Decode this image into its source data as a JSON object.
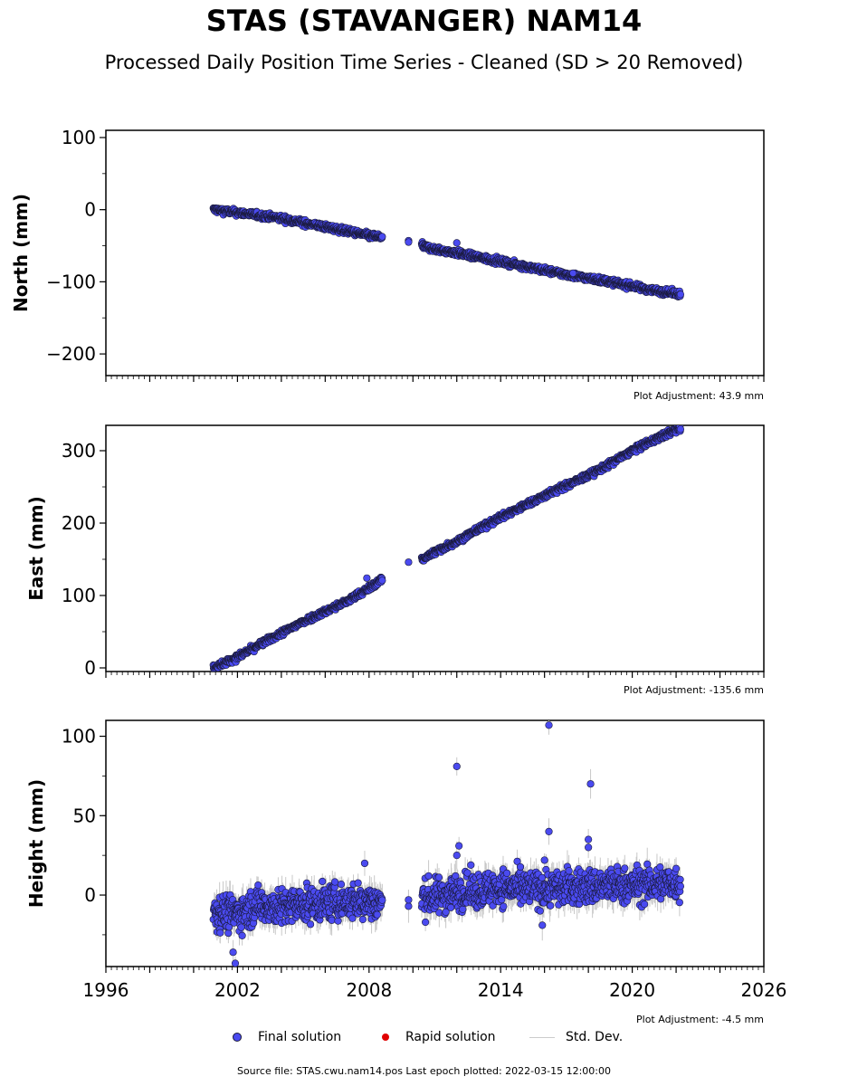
{
  "title": "STAS (STAVANGER) NAM14",
  "subtitle": "Processed Daily Position Time Series - Cleaned (SD > 20 Removed)",
  "colors": {
    "final": "#4a4af0",
    "rapid": "#e00000",
    "stddev": "#c8c8c8",
    "edge": "#1a1a3a"
  },
  "legend": {
    "final": "Final solution",
    "rapid": "Rapid solution",
    "stddev": "Std. Dev."
  },
  "footer": {
    "source": "Source file: STAS.cwu.nam14.pos  Last epoch plotted: 2022-03-15 12:00:00"
  },
  "chart_data": [
    {
      "type": "scatter",
      "ylabel": "North (mm)",
      "adjustment": "Plot Adjustment: 43.9 mm",
      "xlim": [
        1996,
        2026
      ],
      "ylim": [
        -230,
        110
      ],
      "yticks": [
        100,
        0,
        -100,
        -200
      ],
      "ytick_labels": [
        "100",
        "0",
        "−100",
        "−200"
      ],
      "segments": [
        {
          "x": [
            2000.9,
            2002.0,
            2003.0,
            2004.0,
            2005.0,
            2006.0,
            2007.0,
            2008.0,
            2008.6
          ],
          "y": [
            0,
            -4,
            -8,
            -12,
            -18,
            -24,
            -30,
            -36,
            -38
          ]
        },
        {
          "x": [
            2010.4,
            2011.0,
            2012.0,
            2013.0,
            2014.0,
            2015.0,
            2016.0,
            2017.0,
            2018.0,
            2019.0,
            2020.0,
            2021.0,
            2022.2
          ],
          "y": [
            -50,
            -55,
            -60,
            -66,
            -72,
            -78,
            -84,
            -90,
            -95,
            -100,
            -106,
            -112,
            -117
          ]
        }
      ],
      "noise": 3,
      "stddev": 2,
      "points": [
        {
          "x": 2009.8,
          "y": -43
        },
        {
          "x": 2009.8,
          "y": -45
        },
        {
          "x": 2012.0,
          "y": -46
        },
        {
          "x": 2017.3,
          "y": -88
        }
      ]
    },
    {
      "type": "scatter",
      "ylabel": "East (mm)",
      "adjustment": "Plot Adjustment: -135.6 mm",
      "xlim": [
        1996,
        2026
      ],
      "ylim": [
        -5,
        335
      ],
      "yticks": [
        300,
        200,
        100,
        0
      ],
      "ytick_labels": [
        "300",
        "200",
        "100",
        "0"
      ],
      "segments": [
        {
          "x": [
            2000.9,
            2002.0,
            2003.0,
            2004.0,
            2005.0,
            2006.0,
            2007.0,
            2008.0,
            2008.6
          ],
          "y": [
            0,
            15,
            32,
            48,
            64,
            78,
            92,
            110,
            123
          ]
        },
        {
          "x": [
            2010.4,
            2011.0,
            2012.0,
            2013.0,
            2014.0,
            2015.0,
            2016.0,
            2017.0,
            2018.0,
            2019.0,
            2020.0,
            2021.0,
            2022.2
          ],
          "y": [
            150,
            160,
            175,
            192,
            208,
            223,
            238,
            252,
            266,
            282,
            300,
            315,
            332
          ]
        }
      ],
      "noise": 3,
      "stddev": 2,
      "points": [
        {
          "x": 2009.8,
          "y": 146
        },
        {
          "x": 2007.9,
          "y": 124
        }
      ]
    },
    {
      "type": "scatter",
      "ylabel": "Height (mm)",
      "adjustment": "Plot Adjustment: -4.5 mm",
      "xlim": [
        1996,
        2026
      ],
      "ylim": [
        -45,
        110
      ],
      "yticks": [
        100,
        50,
        0
      ],
      "ytick_labels": [
        "100",
        "50",
        "0"
      ],
      "xticks": [
        1996,
        2002,
        2008,
        2014,
        2020,
        2026
      ],
      "xtick_labels": [
        "1996",
        "2002",
        "2008",
        "2014",
        "2020",
        "2026"
      ],
      "segments": [
        {
          "x": [
            2000.9,
            2002.0,
            2003.0,
            2004.0,
            2005.0,
            2006.0,
            2007.0,
            2008.0,
            2008.6
          ],
          "y": [
            -10,
            -12,
            -6,
            -8,
            -6,
            -5,
            -4,
            -4,
            -5
          ]
        },
        {
          "x": [
            2010.4,
            2011.0,
            2012.0,
            2013.0,
            2014.0,
            2015.0,
            2016.0,
            2017.0,
            2018.0,
            2019.0,
            2020.0,
            2021.0,
            2022.2
          ],
          "y": [
            -2,
            -1,
            2,
            3,
            5,
            4,
            4,
            5,
            5,
            6,
            6,
            7,
            8
          ]
        }
      ],
      "noise": 8,
      "stddev": 7,
      "points": [
        {
          "x": 2012.0,
          "y": 81
        },
        {
          "x": 2016.2,
          "y": 107
        },
        {
          "x": 2018.1,
          "y": 70
        },
        {
          "x": 2016.2,
          "y": 40
        },
        {
          "x": 2012.1,
          "y": 31
        },
        {
          "x": 2012.0,
          "y": 25
        },
        {
          "x": 2018.0,
          "y": 35
        },
        {
          "x": 2018.0,
          "y": 30
        },
        {
          "x": 2016.0,
          "y": 22
        },
        {
          "x": 2015.9,
          "y": -19
        },
        {
          "x": 2001.9,
          "y": -43
        },
        {
          "x": 2001.8,
          "y": -36
        },
        {
          "x": 2007.8,
          "y": 20
        },
        {
          "x": 2009.8,
          "y": -7
        },
        {
          "x": 2009.8,
          "y": -3
        }
      ]
    }
  ]
}
